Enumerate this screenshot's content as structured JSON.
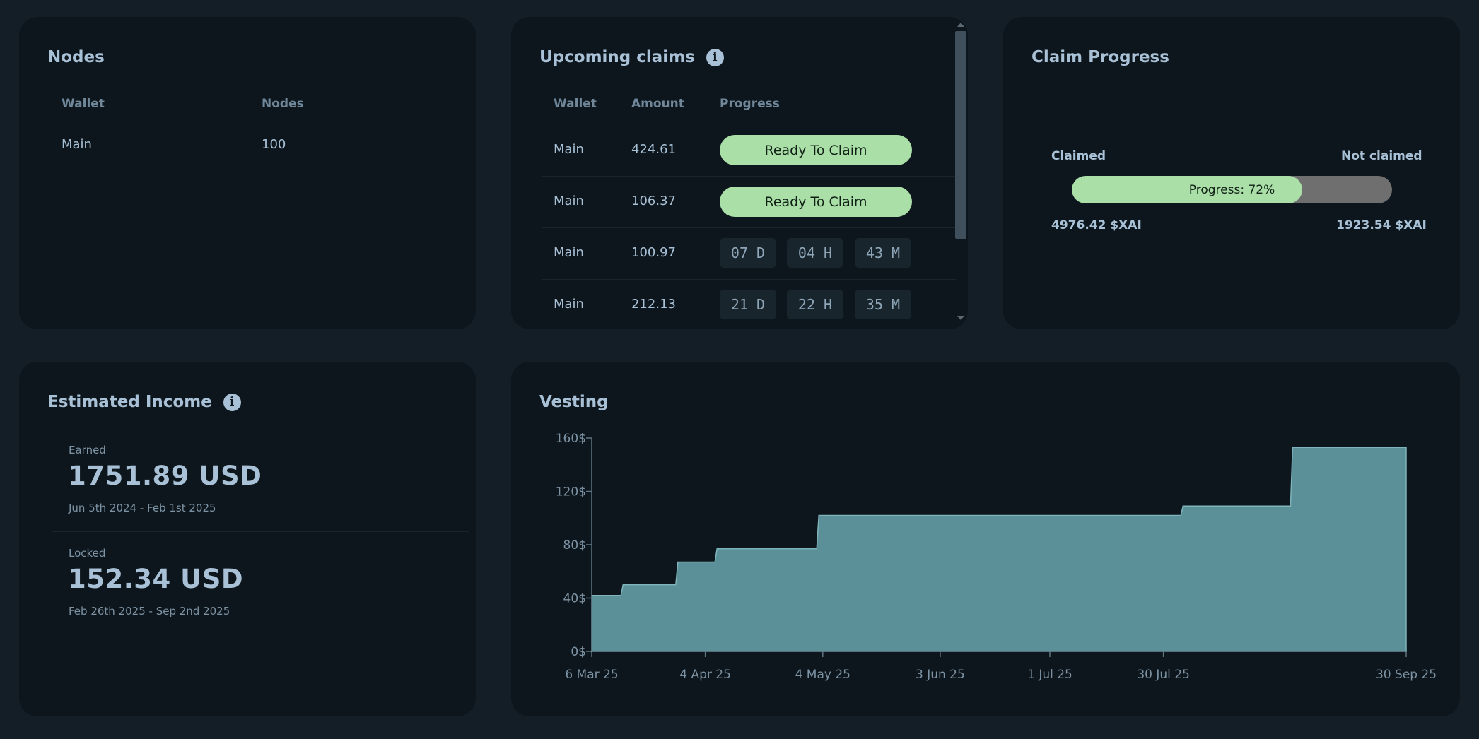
{
  "nodes_card": {
    "title": "Nodes",
    "columns": [
      "Wallet",
      "Nodes"
    ],
    "rows": [
      {
        "wallet": "Main",
        "nodes": "100"
      }
    ]
  },
  "claims_card": {
    "title": "Upcoming claims",
    "columns": [
      "Wallet",
      "Amount",
      "Progress"
    ],
    "ready_label": "Ready To Claim",
    "rows": [
      {
        "wallet": "Main",
        "amount": "424.61",
        "status": "Ready To Claim"
      },
      {
        "wallet": "Main",
        "amount": "106.37",
        "status": "Ready To Claim"
      },
      {
        "wallet": "Main",
        "amount": "100.97",
        "days": "07 D",
        "hours": "04 H",
        "minutes": "43 M"
      },
      {
        "wallet": "Main",
        "amount": "212.13",
        "days": "21 D",
        "hours": "22 H",
        "minutes": "35 M"
      }
    ]
  },
  "claim_progress": {
    "title": "Claim Progress",
    "claimed_label": "Claimed",
    "not_claimed_label": "Not claimed",
    "progress_text": "Progress: 72%",
    "progress_fraction": 0.72,
    "claimed_amount": "4976.42 $XAI",
    "not_claimed_amount": "1923.54 $XAI"
  },
  "income": {
    "title": "Estimated Income",
    "earned": {
      "label": "Earned",
      "value": "1751.89 USD",
      "range": "Jun 5th 2024 - Feb 1st 2025"
    },
    "locked": {
      "label": "Locked",
      "value": "152.34 USD",
      "range": "Feb 26th 2025 - Sep 2nd 2025"
    }
  },
  "vesting": {
    "title": "Vesting"
  },
  "chart_data": {
    "type": "area",
    "step": true,
    "title": "Vesting",
    "y_tick_labels": [
      "0$",
      "40$",
      "80$",
      "120$",
      "160$"
    ],
    "ylim": [
      0,
      160
    ],
    "x_tick_labels": [
      "6 Mar 25",
      "4 Apr 25",
      "4 May 25",
      "3 Jun 25",
      "1 Jul 25",
      "30 Jul 25",
      "30 Sep 25"
    ],
    "x_tick_dates": [
      "2025-03-06",
      "2025-04-04",
      "2025-05-04",
      "2025-06-03",
      "2025-07-01",
      "2025-07-30",
      "2025-09-30"
    ],
    "xlim": [
      "2025-03-06",
      "2025-09-30"
    ],
    "series": [
      {
        "x": [
          "2025-03-06",
          "2025-03-14",
          "2025-03-20",
          "2025-03-28",
          "2025-04-07",
          "2025-05-03",
          "2025-06-01",
          "2025-07-01",
          "2025-08-04",
          "2025-09-01",
          "2025-09-30"
        ],
        "y": [
          42,
          50,
          50,
          67,
          77,
          102,
          102,
          102,
          109,
          153,
          153
        ]
      }
    ],
    "fill_color": "#5b9099",
    "line_color": "#7fb4bc",
    "grid": false
  }
}
